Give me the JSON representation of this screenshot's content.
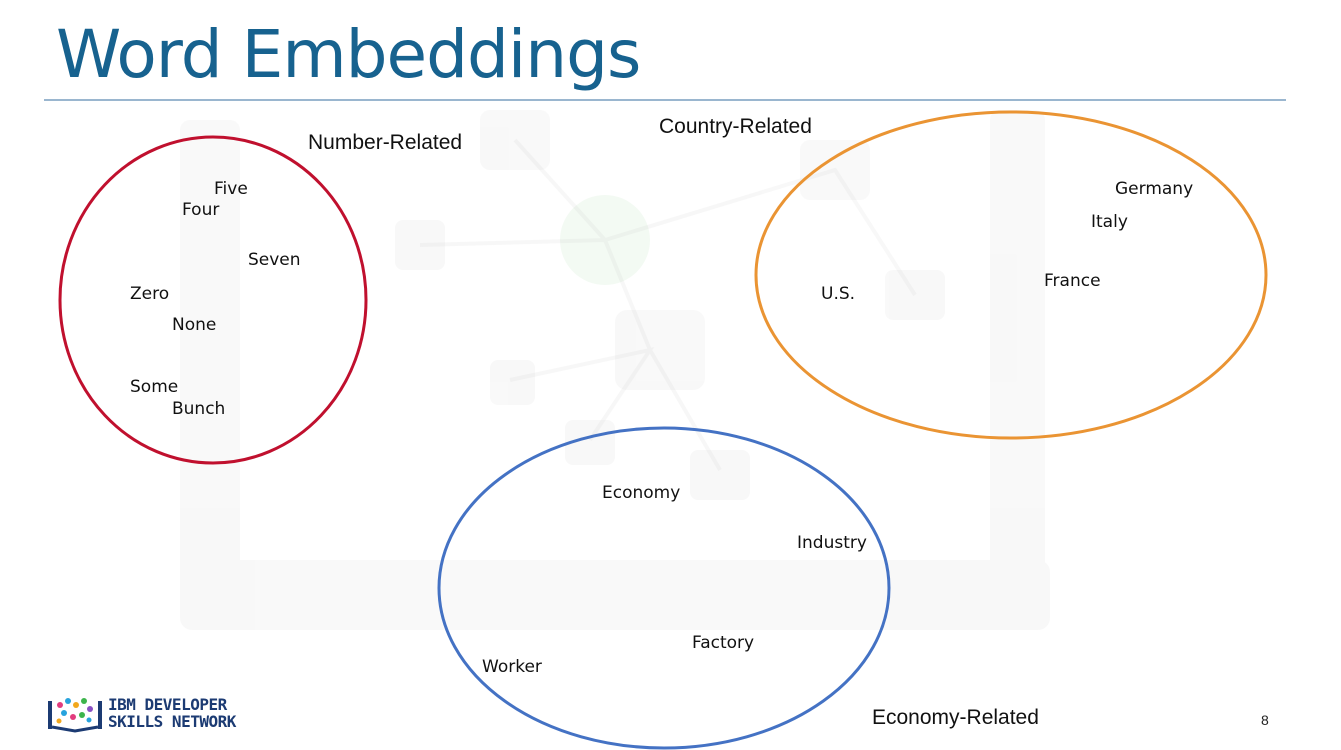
{
  "slide": {
    "title": "Word Embeddings",
    "page_number": "8"
  },
  "clusters": [
    {
      "id": "number",
      "label": "Number-Related",
      "color": "#c0102e",
      "words": [
        "Five",
        "Four",
        "Seven",
        "Zero",
        "None",
        "Some",
        "Bunch"
      ]
    },
    {
      "id": "country",
      "label": "Country-Related",
      "color": "#ea9433",
      "words": [
        "Germany",
        "Italy",
        "France",
        "U.S."
      ]
    },
    {
      "id": "economy",
      "label": "Economy-Related",
      "color": "#4472c4",
      "words": [
        "Economy",
        "Industry",
        "Factory",
        "Worker"
      ]
    }
  ],
  "logo": {
    "line1": "IBM DEVELOPER",
    "line2": "SKILLS NETWORK",
    "icon": "ibm-skills-network-book-icon"
  }
}
